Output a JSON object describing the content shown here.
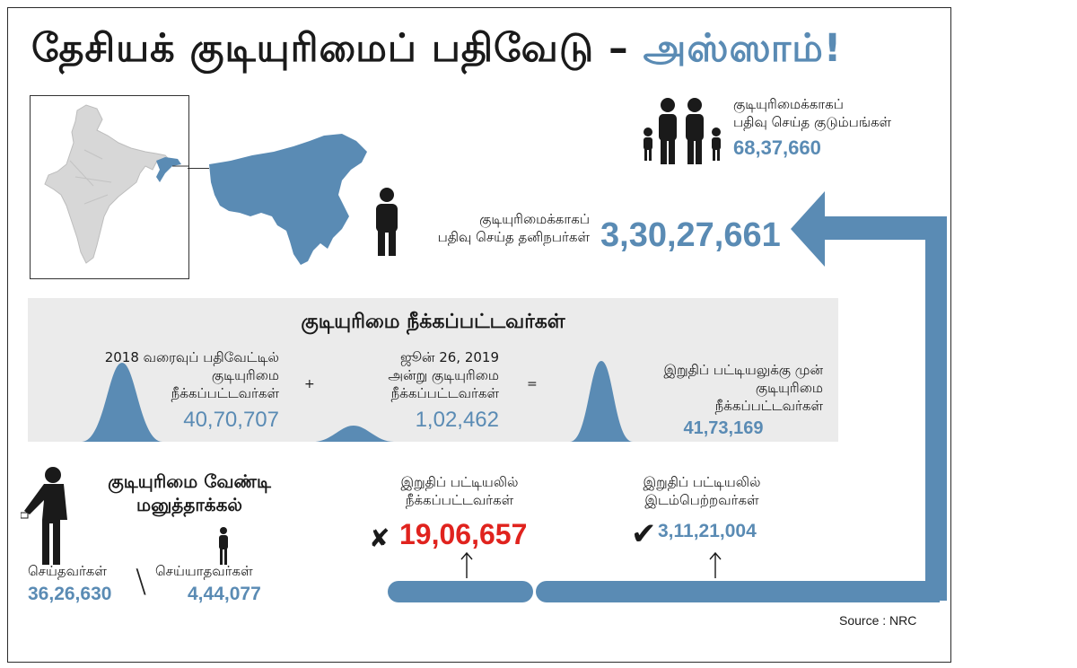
{
  "title": {
    "main": "தேசியக் குடியுரிமைப் பதிவேடு – ",
    "accent": "அஸ்ஸாம்!"
  },
  "families": {
    "label_line1": "குடியுரிமைக்காகப்",
    "label_line2": "பதிவு செய்த குடும்பங்கள்",
    "value": "68,37,660"
  },
  "individuals": {
    "label_line1": "குடியுரிமைக்காகப்",
    "label_line2": "பதிவு செய்த தனிநபர்கள்",
    "value": "3,30,27,661"
  },
  "excluded": {
    "heading": "குடியுரிமை நீக்கப்பட்டவர்கள்",
    "draft2018": {
      "line1": "2018 வரைவுப் பதிவேட்டில்",
      "line2": "குடியுரிமை",
      "line3": "நீக்கப்பட்டவர்கள்",
      "value": "40,70,707"
    },
    "plus": "+",
    "june2019": {
      "line1": "ஜூன் 26, 2019",
      "line2": "அன்று குடியுரிமை",
      "line3": "நீக்கப்பட்டவர்கள்",
      "value": "1,02,462"
    },
    "equals": "=",
    "before_final": {
      "line1": "இறுதிப் பட்டியலுக்கு முன்",
      "line2": "குடியுரிமை",
      "line3": "நீக்கப்பட்டவர்கள்",
      "value": "41,73,169"
    }
  },
  "appeal": {
    "heading_line1": "குடியுரிமை வேண்டி",
    "heading_line2": "மனுத்தாக்கல்",
    "filed_label": "செய்தவர்கள்",
    "filed_value": "36,26,630",
    "separator": "\\",
    "not_filed_label": "செய்யாதவர்கள்",
    "not_filed_value": "4,44,077"
  },
  "final_excluded": {
    "line1": "இறுதிப் பட்டியலில்",
    "line2": "நீக்கப்பட்டவர்கள்",
    "value": "19,06,657"
  },
  "final_included": {
    "line1": "இறுதிப் பட்டியலில்",
    "line2": "இடம்பெற்றவர்கள்",
    "value": "3,11,21,004"
  },
  "source": "Source : NRC",
  "colors": {
    "accent": "#5a8bb4",
    "red": "#e0231e",
    "panel": "#ebebeb",
    "dark": "#1a1a1a"
  },
  "icons": [
    "india-map-icon",
    "assam-map-icon",
    "family-icon",
    "person-icon",
    "bell-curve-icon",
    "cross-icon",
    "check-icon",
    "up-arrow-icon",
    "voter-icon"
  ]
}
